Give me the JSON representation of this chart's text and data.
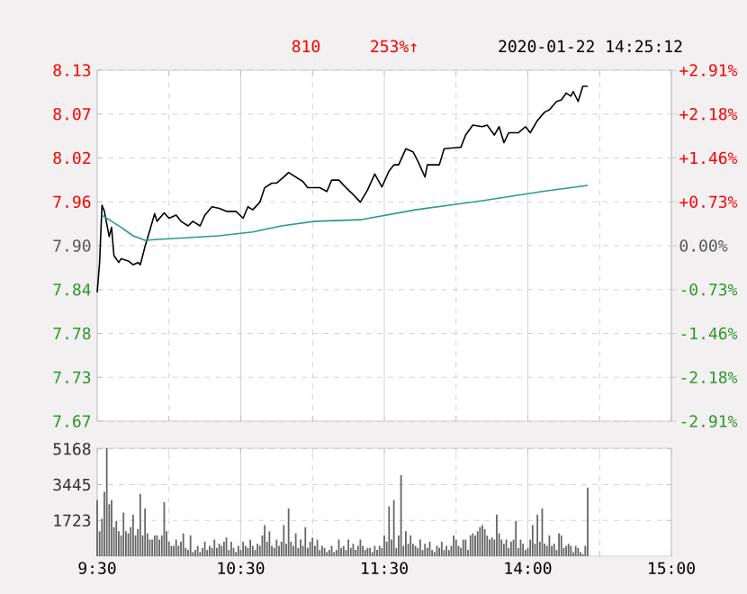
{
  "chart_data": [
    {
      "type": "line",
      "annotations": [
        "810",
        "253%↑",
        "2020-01-22 14:25:12"
      ],
      "categories": [
        null,
        null,
        null,
        null,
        null,
        null,
        null,
        null,
        null,
        null,
        null,
        null,
        null,
        null,
        null,
        null,
        null,
        null,
        null,
        null,
        null,
        null,
        null,
        null,
        null,
        null,
        null,
        null,
        null,
        null,
        null,
        null,
        null,
        null,
        null,
        null,
        null,
        null,
        null,
        null,
        null,
        null,
        null,
        null,
        null,
        null,
        null,
        null,
        null,
        null,
        null,
        null,
        null,
        null,
        null,
        null,
        null,
        null,
        null,
        null,
        null,
        null,
        null,
        null,
        null,
        null,
        null,
        null,
        null,
        null,
        null,
        null,
        null,
        null,
        null,
        null,
        null,
        null,
        null,
        null,
        null,
        null,
        null,
        null,
        null,
        null,
        null,
        null,
        null,
        null,
        null,
        null,
        null,
        null,
        null,
        null,
        null,
        null,
        null,
        null,
        null,
        null,
        null,
        null,
        null,
        null,
        null,
        null,
        null,
        null,
        null,
        null,
        null,
        null,
        null,
        null,
        null,
        null,
        null,
        null,
        null,
        null,
        null,
        null,
        null,
        null,
        null,
        null,
        null,
        null,
        null,
        null,
        null,
        null,
        null,
        null,
        null,
        null,
        null,
        null,
        null,
        null,
        null,
        null,
        null,
        null,
        null,
        null,
        null,
        null,
        null,
        null,
        null,
        null,
        null,
        null,
        null,
        null,
        null,
        null,
        null,
        null,
        null,
        null,
        null,
        null,
        null,
        null,
        null,
        null,
        null,
        null,
        null,
        null,
        null,
        null,
        null,
        null,
        null,
        null,
        null,
        null,
        null,
        null,
        null,
        null,
        null,
        null,
        null,
        null,
        null,
        null,
        null,
        null,
        null,
        null,
        null,
        null,
        null,
        null,
        null,
        null,
        null,
        null,
        null,
        null,
        null,
        null,
        null,
        null,
        null,
        null,
        null,
        null,
        null,
        null,
        null,
        null,
        null,
        null,
        null,
        null,
        null,
        null,
        null,
        null,
        null,
        null,
        null,
        null,
        null,
        null,
        null,
        null,
        null,
        null,
        null,
        null,
        null,
        null,
        null
      ],
      "series": [
        {
          "color": "#000000",
          "values": [
            7.839,
            7.878,
            7.953,
            7.945,
            null,
            7.912,
            7.924,
            7.887,
            null,
            7.878,
            7.883,
            null,
            null,
            7.88,
            null,
            7.875,
            null,
            7.878,
            7.875,
            null,
            7.899,
            null,
            7.92,
            null,
            7.942,
            7.932,
            null,
            null,
            7.943,
            null,
            7.936,
            null,
            null,
            7.94,
            null,
            7.932,
            null,
            null,
            7.926,
            null,
            7.932,
            null,
            null,
            7.926,
            null,
            7.94,
            null,
            null,
            7.951,
            null,
            null,
            7.949,
            null,
            null,
            7.945,
            null,
            null,
            null,
            7.945,
            null,
            null,
            7.936,
            null,
            7.951,
            null,
            7.947,
            null,
            null,
            7.957,
            null,
            7.976,
            null,
            null,
            7.982,
            null,
            7.982,
            null,
            null,
            7.99,
            null,
            7.996,
            null,
            null,
            7.99,
            null,
            null,
            7.984,
            null,
            7.976,
            null,
            null,
            null,
            null,
            7.976,
            null,
            null,
            7.971,
            null,
            7.986,
            null,
            null,
            7.986,
            null,
            null,
            7.976,
            null,
            null,
            7.967,
            null,
            null,
            7.957,
            null,
            null,
            7.973,
            null,
            null,
            7.994,
            null,
            null,
            7.977,
            null,
            null,
            7.998,
            null,
            8.006,
            null,
            8.006,
            null,
            null,
            8.027,
            null,
            null,
            8.023,
            null,
            8.011,
            null,
            null,
            7.99,
            8.006,
            null,
            null,
            null,
            null,
            8.006,
            null,
            8.027,
            null,
            null,
            null,
            null,
            null,
            null,
            8.029,
            null,
            8.045,
            null,
            null,
            8.058,
            null,
            null,
            null,
            8.056,
            null,
            8.058,
            null,
            null,
            8.045,
            null,
            8.056,
            null,
            8.035,
            null,
            8.048,
            null,
            null,
            null,
            8.048,
            null,
            null,
            8.056,
            null,
            8.048,
            null,
            null,
            8.064,
            null,
            null,
            8.075,
            null,
            8.078,
            null,
            null,
            8.089,
            null,
            8.091,
            null,
            8.1,
            null,
            8.096,
            8.102,
            null,
            8.089,
            null,
            8.109,
            null,
            8.109,
            null,
            null,
            null,
            null,
            null,
            null,
            null,
            null,
            null,
            null,
            null,
            null,
            null,
            null,
            null,
            null,
            null,
            null,
            null,
            null,
            null,
            null,
            null,
            null,
            null,
            null,
            null,
            null,
            null,
            null,
            null,
            null,
            null,
            null,
            null
          ]
        },
        {
          "color": "#2a9a8c",
          "values": [
            null,
            null,
            7.94,
            null,
            null,
            null,
            null,
            null,
            null,
            null,
            7.924,
            null,
            null,
            null,
            null,
            7.913,
            null,
            null,
            null,
            null,
            7.907,
            null,
            null,
            null,
            7.908,
            null,
            null,
            null,
            null,
            null,
            null,
            null,
            null,
            null,
            null,
            null,
            null,
            null,
            null,
            null,
            null,
            null,
            null,
            null,
            null,
            null,
            null,
            null,
            null,
            null,
            null,
            7.913,
            null,
            null,
            null,
            null,
            null,
            null,
            null,
            null,
            null,
            null,
            null,
            null,
            null,
            7.918,
            null,
            null,
            null,
            null,
            null,
            null,
            null,
            null,
            null,
            null,
            null,
            7.926,
            null,
            null,
            null,
            null,
            null,
            null,
            null,
            null,
            null,
            null,
            null,
            null,
            null,
            7.932,
            null,
            null,
            null,
            null,
            null,
            null,
            null,
            null,
            null,
            null,
            null,
            null,
            null,
            null,
            null,
            null,
            null,
            null,
            7.934,
            null,
            null,
            null,
            null,
            null,
            null,
            null,
            null,
            null,
            null,
            null,
            null,
            null,
            null,
            null,
            null,
            null,
            null,
            null,
            null,
            null,
            null,
            7.947,
            null,
            null,
            null,
            null,
            null,
            null,
            null,
            null,
            null,
            null,
            null,
            null,
            null,
            null,
            null,
            null,
            null,
            null,
            null,
            null,
            null,
            null,
            null,
            null,
            null,
            null,
            null,
            7.959,
            null,
            null,
            null,
            null,
            null,
            null,
            null,
            null,
            null,
            null,
            null,
            null,
            null,
            null,
            null,
            null,
            null,
            null,
            null,
            null,
            null,
            null,
            null,
            null,
            7.971,
            null,
            null,
            null,
            null,
            null,
            null,
            null,
            null,
            null,
            null,
            null,
            null,
            null,
            null,
            null,
            null,
            null,
            null,
            7.979,
            null,
            null,
            null,
            null,
            null,
            null,
            null,
            null,
            null,
            null,
            null,
            null,
            null,
            null,
            null,
            null,
            null,
            null,
            null,
            null,
            null,
            null,
            null,
            null,
            null,
            null,
            null,
            null,
            null,
            null,
            null,
            null,
            null,
            null,
            null
          ]
        }
      ],
      "ylim": [
        7.67,
        8.13
      ],
      "yticks": [
        8.13,
        {
          "value": 8.0725,
          "label": "8.07"
        },
        {
          "value": 8.015,
          "label": "8.02"
        },
        {
          "value": 7.9575,
          "label": "7.96"
        },
        {
          "value": 7.9,
          "label": "7.90"
        },
        {
          "value": 7.8425,
          "label": "7.84"
        },
        {
          "value": 7.785,
          "label": "7.78"
        },
        {
          "value": 7.7275,
          "label": "7.73"
        },
        7.67
      ],
      "y2lim": [
        -2.91,
        2.91
      ],
      "y2ticks": [
        {
          "value": 2.91,
          "label": "+2.91%"
        },
        {
          "value": 2.1825,
          "label": "+2.18%"
        },
        {
          "value": 1.455,
          "label": "+1.46%"
        },
        {
          "value": 0.7275,
          "label": "+0.73%"
        },
        {
          "value": 0,
          "label": "0.00%"
        },
        {
          "value": -0.7275,
          "label": "-0.73%"
        },
        {
          "value": -1.455,
          "label": "-1.46%"
        },
        {
          "value": -2.1825,
          "label": "-2.18%"
        },
        {
          "value": -2.91,
          "label": "-2.91%"
        }
      ],
      "grid": true,
      "tick_labels": "y"
    },
    {
      "type": "bar",
      "color": "#666666",
      "categories": [
        "9:30",
        null,
        null,
        null,
        null,
        null,
        null,
        null,
        null,
        null,
        null,
        null,
        null,
        null,
        null,
        null,
        null,
        null,
        null,
        null,
        null,
        null,
        null,
        null,
        null,
        null,
        null,
        null,
        null,
        null,
        null,
        null,
        null,
        null,
        null,
        null,
        null,
        null,
        null,
        null,
        null,
        null,
        null,
        null,
        null,
        null,
        null,
        null,
        null,
        null,
        null,
        null,
        null,
        null,
        null,
        null,
        null,
        null,
        null,
        null,
        "10:30",
        null,
        null,
        null,
        null,
        null,
        null,
        null,
        null,
        null,
        null,
        null,
        null,
        null,
        null,
        null,
        null,
        null,
        null,
        null,
        null,
        null,
        null,
        null,
        null,
        null,
        null,
        null,
        null,
        null,
        null,
        null,
        null,
        null,
        null,
        null,
        null,
        null,
        null,
        null,
        null,
        null,
        null,
        null,
        null,
        null,
        null,
        null,
        null,
        null,
        null,
        null,
        null,
        null,
        null,
        null,
        null,
        null,
        null,
        null,
        "11:30",
        null,
        null,
        null,
        null,
        null,
        null,
        null,
        null,
        null,
        null,
        null,
        null,
        null,
        null,
        null,
        null,
        null,
        null,
        null,
        null,
        null,
        null,
        null,
        null,
        null,
        null,
        null,
        null,
        null,
        null,
        null,
        null,
        null,
        null,
        null,
        null,
        null,
        null,
        null,
        null,
        null,
        null,
        null,
        null,
        null,
        null,
        null,
        null,
        null,
        null,
        null,
        null,
        null,
        null,
        null,
        null,
        null,
        null,
        null,
        "14:00",
        null,
        null,
        null,
        null,
        null,
        null,
        null,
        null,
        null,
        null,
        null,
        null,
        null,
        null,
        null,
        null,
        null,
        null,
        null,
        null,
        null,
        null,
        null,
        null,
        null,
        null,
        null,
        null,
        null,
        null,
        null,
        null,
        null,
        null,
        null,
        null,
        null,
        null,
        null,
        null,
        null,
        null,
        null,
        null,
        null,
        null,
        null,
        null,
        null,
        null,
        null,
        null,
        null,
        null,
        null,
        null,
        null,
        null,
        null,
        "15:00"
      ],
      "values": [
        2700,
        1200,
        1800,
        3100,
        5200,
        2500,
        2700,
        1400,
        1700,
        1200,
        1000,
        2100,
        1200,
        1100,
        1400,
        2000,
        1000,
        1300,
        3000,
        1000,
        2300,
        1100,
        800,
        800,
        1000,
        1000,
        800,
        1000,
        2600,
        1200,
        700,
        500,
        500,
        800,
        500,
        700,
        1100,
        400,
        300,
        1000,
        200,
        300,
        500,
        200,
        400,
        700,
        300,
        500,
        400,
        800,
        400,
        600,
        500,
        700,
        900,
        300,
        700,
        400,
        200,
        500,
        300,
        700,
        500,
        400,
        800,
        500,
        300,
        600,
        500,
        1000,
        1500,
        700,
        1200,
        500,
        400,
        800,
        500,
        700,
        1500,
        600,
        2300,
        700,
        500,
        1100,
        400,
        800,
        500,
        1400,
        400,
        700,
        900,
        500,
        800,
        300,
        500,
        400,
        200,
        300,
        500,
        200,
        300,
        800,
        400,
        500,
        300,
        800,
        400,
        600,
        300,
        500,
        800,
        500,
        300,
        400,
        400,
        200,
        500,
        300,
        500,
        400,
        1000,
        700,
        2400,
        800,
        2700,
        400,
        1000,
        3900,
        500,
        1200,
        600,
        1000,
        600,
        500,
        400,
        800,
        300,
        600,
        400,
        700,
        300,
        200,
        500,
        400,
        700,
        300,
        500,
        300,
        500,
        1000,
        800,
        500,
        400,
        800,
        800,
        300,
        1000,
        1100,
        1000,
        1200,
        1400,
        1500,
        1300,
        1000,
        800,
        900,
        800,
        2000,
        1100,
        800,
        600,
        800,
        400,
        700,
        800,
        1700,
        400,
        800,
        600,
        300,
        400,
        800,
        1500,
        600,
        2000,
        700,
        2300,
        600,
        500,
        1000,
        500,
        600,
        300,
        1100,
        1000,
        400,
        500,
        600,
        500,
        200,
        500,
        400,
        200,
        100,
        500,
        3300,
        null,
        null,
        null,
        null,
        null,
        null,
        null,
        null,
        null,
        null,
        null,
        null,
        null,
        null,
        null,
        null,
        null,
        null,
        null,
        null,
        null,
        null,
        null,
        null,
        null,
        null,
        null,
        null,
        null,
        null,
        null,
        null,
        null,
        null,
        null
      ],
      "ylim": [
        0,
        5200
      ],
      "yticks": [
        {
          "value": 1723,
          "label": "1723"
        },
        {
          "value": 3445,
          "label": "3445"
        },
        {
          "value": 5168,
          "label": "5168"
        }
      ],
      "grid": true
    }
  ]
}
